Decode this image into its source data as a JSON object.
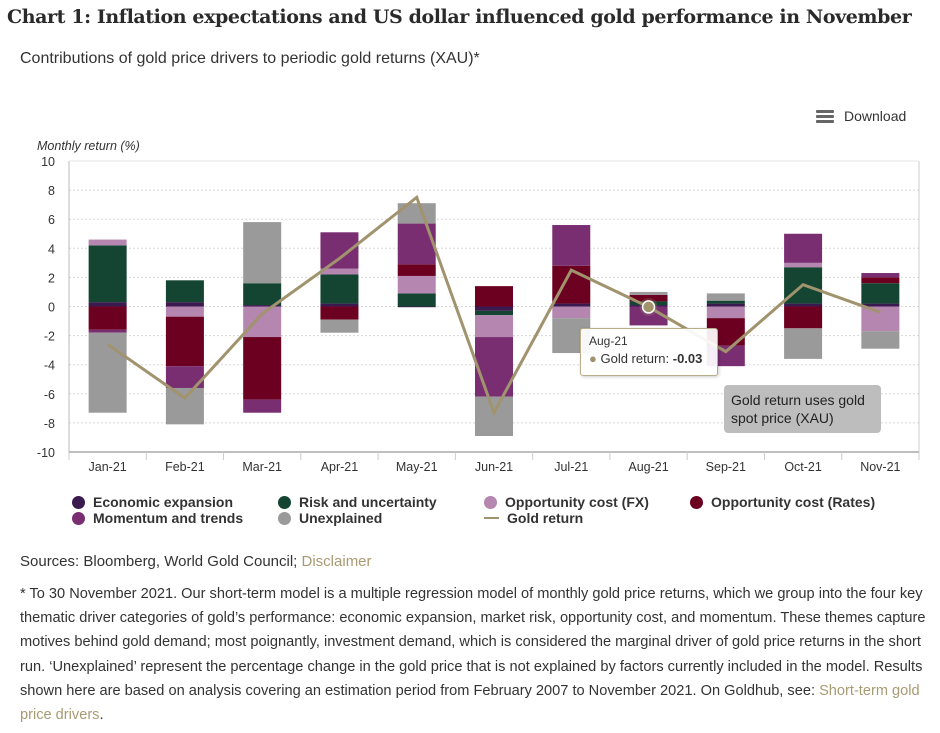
{
  "title": "Chart 1: Inflation expectations and US dollar influenced gold performance in November",
  "subtitle": "Contributions of gold price drivers to periodic gold returns (XAU)*",
  "download_label": "Download",
  "annotation": "Gold return uses gold spot price (XAU)",
  "tooltip": {
    "month": "Aug-21",
    "label": "Gold return: ",
    "value": "-0.03"
  },
  "sources": {
    "text": "Sources: Bloomberg, World Gold Council; ",
    "link": "Disclaimer"
  },
  "footnote": {
    "text": "* To 30 November 2021. Our short-term model is a multiple regression model of monthly gold price returns, which we group into the four key thematic driver categories of gold’s performance: economic expansion, market risk, opportunity cost, and momentum. These themes capture motives behind gold demand; most poignantly, investment demand, which is considered the marginal driver of gold price returns in the short run. ‘Unexplained’ represent the percentage change in the gold price that is not explained by factors currently included in the model. Results shown here are based on analysis covering an estimation period from February 2007 to November 2021. On Goldhub, see: ",
    "link": "Short-term gold price drivers",
    "end": "."
  },
  "chart_data": {
    "type": "bar",
    "stacked": true,
    "title": "Contributions of gold price drivers to periodic gold returns (XAU)*",
    "xlabel": "",
    "ylabel": "Monthly return (%)",
    "ylim": [
      -10,
      10
    ],
    "yticks": [
      10,
      8,
      6,
      4,
      2,
      0,
      -2,
      -4,
      -6,
      -8,
      -10
    ],
    "grid": true,
    "legend_position": "bottom",
    "categories": [
      "Jan-21",
      "Feb-21",
      "Mar-21",
      "Apr-21",
      "May-21",
      "Jun-21",
      "Jul-21",
      "Aug-21",
      "Sep-21",
      "Oct-21",
      "Nov-21"
    ],
    "series": [
      {
        "name": "Economic expansion",
        "color": "#3b1a4f",
        "values": [
          0.3,
          0.3,
          0.1,
          0.2,
          -0.05,
          -0.3,
          0.2,
          0.1,
          0.2,
          0.2,
          0.2
        ]
      },
      {
        "name": "Risk and uncertainty",
        "color": "#144532",
        "values": [
          3.9,
          1.5,
          1.5,
          2.0,
          0.9,
          -0.3,
          0.0,
          0.25,
          0.2,
          2.5,
          1.4
        ]
      },
      {
        "name": "Opportunity cost (FX)",
        "color": "#b586b0",
        "values": [
          0.4,
          -0.7,
          -2.1,
          0.4,
          1.2,
          -1.5,
          -0.8,
          0.0,
          -0.8,
          0.3,
          -1.7
        ]
      },
      {
        "name": "Opportunity cost (Rates)",
        "color": "#6b0020",
        "values": [
          -1.6,
          -3.4,
          -4.3,
          -0.9,
          0.8,
          1.4,
          2.6,
          0.45,
          -1.9,
          -1.5,
          0.4
        ]
      },
      {
        "name": "Momentum and trends",
        "color": "#7a2e72",
        "values": [
          -0.2,
          -1.5,
          -0.9,
          2.5,
          2.8,
          -4.1,
          2.8,
          -1.3,
          -1.4,
          2.0,
          0.3
        ]
      },
      {
        "name": "Unexplained",
        "color": "#9a9a9a",
        "values": [
          -5.5,
          -2.5,
          4.2,
          -0.9,
          1.4,
          -2.7,
          -2.4,
          0.2,
          0.5,
          -2.1,
          -1.2
        ]
      }
    ],
    "line_series": {
      "name": "Gold return",
      "color": "#a0936e",
      "values": [
        -2.6,
        -6.3,
        -0.5,
        3.3,
        7.5,
        -7.3,
        2.5,
        -0.03,
        -3.1,
        1.5,
        -0.4
      ]
    },
    "highlighted_point": {
      "category": "Aug-21",
      "value": -0.03
    },
    "legend": [
      {
        "label": "Economic expansion",
        "kind": "dot",
        "color": "#3b1a4f"
      },
      {
        "label": "Risk and uncertainty",
        "kind": "dot",
        "color": "#144532"
      },
      {
        "label": "Opportunity cost (FX)",
        "kind": "dot",
        "color": "#b586b0"
      },
      {
        "label": "Opportunity cost (Rates)",
        "kind": "dot",
        "color": "#6b0020"
      },
      {
        "label": "Momentum and trends",
        "kind": "dot",
        "color": "#7a2e72"
      },
      {
        "label": "Unexplained",
        "kind": "dot",
        "color": "#9a9a9a"
      },
      {
        "label": "Gold return",
        "kind": "line",
        "color": "#a0936e"
      }
    ]
  }
}
